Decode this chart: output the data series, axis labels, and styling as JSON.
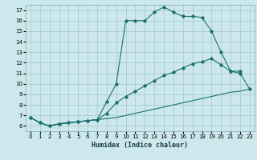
{
  "title": "",
  "xlabel": "Humidex (Indice chaleur)",
  "bg_color": "#cce8ec",
  "grid_color": "#aacccc",
  "line_color": "#1a7070",
  "xlim": [
    -0.5,
    23.5
  ],
  "ylim": [
    5.5,
    17.5
  ],
  "xticks": [
    0,
    1,
    2,
    3,
    4,
    5,
    6,
    7,
    8,
    9,
    10,
    11,
    12,
    13,
    14,
    15,
    16,
    17,
    18,
    19,
    20,
    21,
    22,
    23
  ],
  "yticks": [
    6,
    7,
    8,
    9,
    10,
    11,
    12,
    13,
    14,
    15,
    16,
    17
  ],
  "line1_x": [
    0,
    1,
    2,
    3,
    4,
    5,
    6,
    7,
    8,
    9,
    10,
    11,
    12,
    13,
    14,
    15,
    16,
    17,
    18,
    19,
    20,
    21,
    22
  ],
  "line1_y": [
    6.8,
    6.3,
    6.0,
    6.2,
    6.3,
    6.4,
    6.5,
    6.6,
    8.3,
    10.0,
    16.0,
    16.0,
    16.0,
    16.8,
    17.3,
    16.8,
    16.4,
    16.4,
    16.3,
    15.0,
    13.0,
    11.2,
    11.2
  ],
  "line2_x": [
    0,
    1,
    2,
    3,
    4,
    5,
    6,
    7,
    8,
    9,
    10,
    11,
    12,
    13,
    14,
    15,
    16,
    17,
    18,
    19,
    20,
    21,
    22,
    23
  ],
  "line2_y": [
    6.8,
    6.3,
    6.0,
    6.2,
    6.3,
    6.4,
    6.5,
    6.6,
    7.2,
    8.2,
    8.8,
    9.3,
    9.8,
    10.3,
    10.8,
    11.1,
    11.5,
    11.9,
    12.1,
    12.4,
    11.8,
    11.2,
    11.0,
    9.5
  ],
  "line3_x": [
    0,
    1,
    2,
    3,
    4,
    5,
    6,
    7,
    8,
    9,
    10,
    11,
    12,
    13,
    14,
    15,
    16,
    17,
    18,
    19,
    20,
    21,
    22,
    23
  ],
  "line3_y": [
    6.8,
    6.3,
    6.0,
    6.2,
    6.3,
    6.4,
    6.5,
    6.6,
    6.7,
    6.8,
    7.0,
    7.2,
    7.4,
    7.6,
    7.8,
    8.0,
    8.2,
    8.4,
    8.6,
    8.8,
    9.0,
    9.2,
    9.3,
    9.5
  ]
}
